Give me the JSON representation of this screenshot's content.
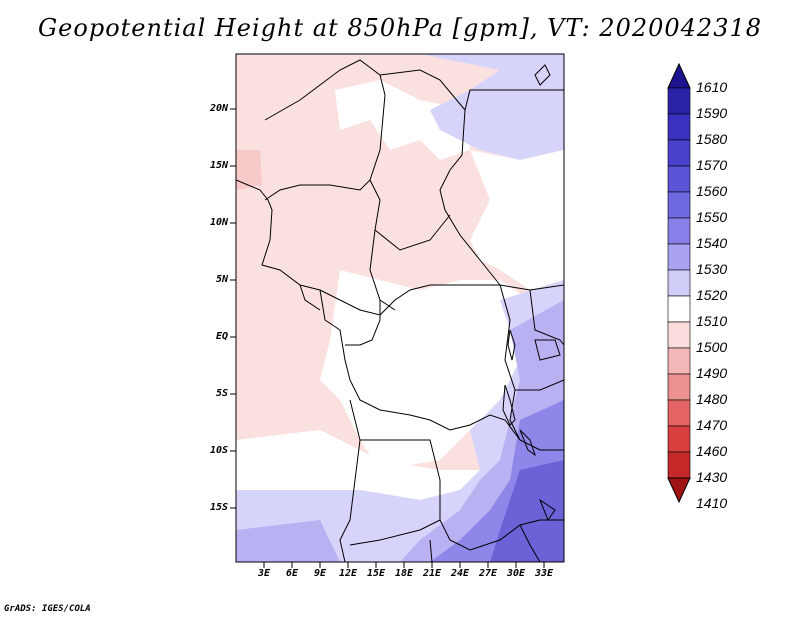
{
  "title": "Geopotential Height at 850hPa [gpm], VT: 2020042318",
  "footer": "GrADS: IGES/COLA",
  "map": {
    "lat_ticks": [
      "20N",
      "15N",
      "10N",
      "5N",
      "EQ",
      "5S",
      "10S",
      "15S"
    ],
    "lon_ticks": [
      "3E",
      "6E",
      "9E",
      "12E",
      "15E",
      "18E",
      "21E",
      "24E",
      "27E",
      "30E",
      "33E"
    ]
  },
  "colorbar": {
    "labels": [
      "1610",
      "1590",
      "1580",
      "1570",
      "1560",
      "1550",
      "1540",
      "1530",
      "1520",
      "1510",
      "1500",
      "1490",
      "1480",
      "1470",
      "1460",
      "1430",
      "1410"
    ],
    "colors": [
      "#1d1490",
      "#2a22a8",
      "#3a32be",
      "#4a42cc",
      "#5c54d8",
      "#7068e0",
      "#8880e8",
      "#a8a2f0",
      "#cfcdf8",
      "#ffffff",
      "#fadcdc",
      "#f4b8b8",
      "#ec9090",
      "#e46464",
      "#d84040",
      "#c42828",
      "#a01414"
    ]
  },
  "colors": {
    "pink_light": "#fbe0e0",
    "pink_med": "#f7c9c9",
    "blue_1": "#d6d4fa",
    "blue_2": "#b8b2f2",
    "blue_3": "#8e86e8",
    "blue_4": "#6b62d8"
  }
}
